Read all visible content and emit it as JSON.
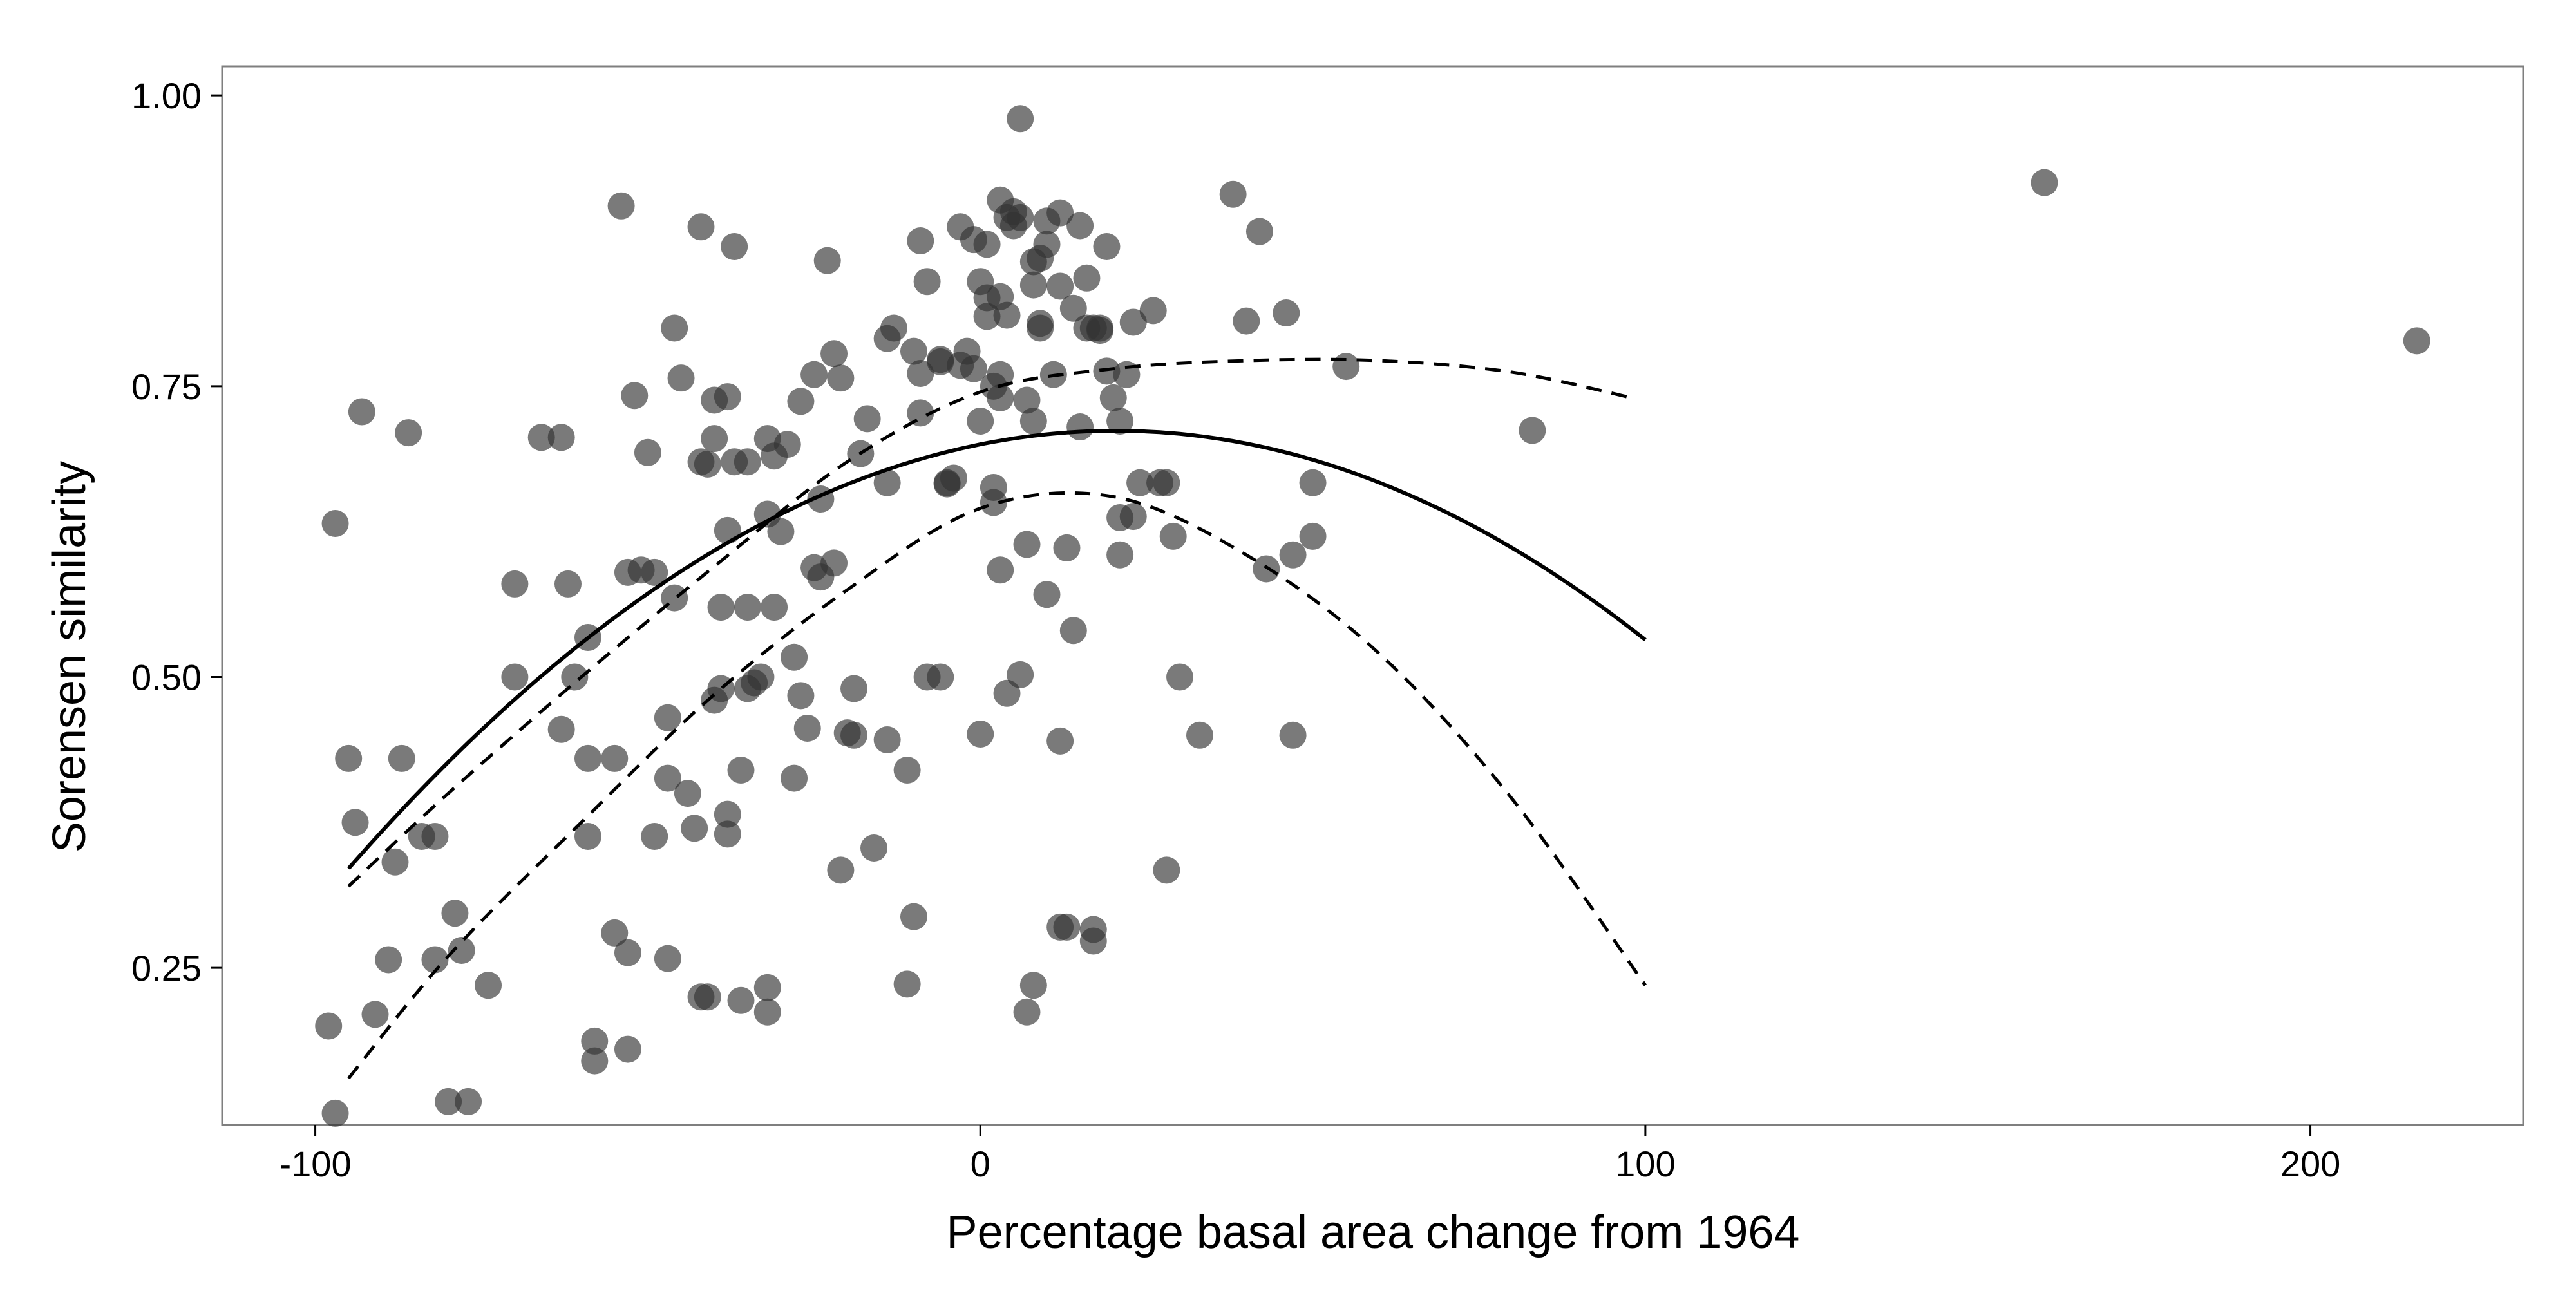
{
  "chart_data": {
    "type": "scatter",
    "xlabel": "Percentage basal area change from 1964",
    "ylabel": "Sorensen similarity",
    "xlim": [
      -114,
      232
    ],
    "ylim": [
      0.115,
      1.025
    ],
    "x_ticks": [
      -100,
      0,
      100,
      200
    ],
    "x_tick_labels": [
      "-100",
      "0",
      "100",
      "200"
    ],
    "y_ticks": [
      0.25,
      0.5,
      0.75,
      1.0
    ],
    "y_tick_labels": [
      "0.25",
      "0.50",
      "0.75",
      "1.00"
    ],
    "grid": false,
    "legend": "none",
    "colors": {
      "point": "#333333",
      "point_opacity": 0.65,
      "fit_line": "#000000",
      "panel_border": "#7f7f7f"
    },
    "points": [
      [
        -98,
        0.2
      ],
      [
        -97,
        0.125
      ],
      [
        -97,
        0.632
      ],
      [
        -95,
        0.43
      ],
      [
        -94,
        0.375
      ],
      [
        -93,
        0.728
      ],
      [
        -91,
        0.21
      ],
      [
        -89,
        0.257
      ],
      [
        -88,
        0.341
      ],
      [
        -87,
        0.43
      ],
      [
        -86,
        0.71
      ],
      [
        -84,
        0.363
      ],
      [
        -82,
        0.257
      ],
      [
        -82,
        0.363
      ],
      [
        -80,
        0.135
      ],
      [
        -79,
        0.297
      ],
      [
        -78,
        0.265
      ],
      [
        -77,
        0.135
      ],
      [
        -74,
        0.235
      ],
      [
        -70,
        0.58
      ],
      [
        -70,
        0.5
      ],
      [
        -66,
        0.706
      ],
      [
        -63,
        0.706
      ],
      [
        -63,
        0.455
      ],
      [
        -62,
        0.58
      ],
      [
        -61,
        0.5
      ],
      [
        -59,
        0.534
      ],
      [
        -59,
        0.363
      ],
      [
        -59,
        0.43
      ],
      [
        -58,
        0.187
      ],
      [
        -58,
        0.17
      ],
      [
        -55,
        0.28
      ],
      [
        -55,
        0.43
      ],
      [
        -54,
        0.905
      ],
      [
        -53,
        0.263
      ],
      [
        -53,
        0.18
      ],
      [
        -53,
        0.59
      ],
      [
        -52,
        0.742
      ],
      [
        -51,
        0.592
      ],
      [
        -50,
        0.693
      ],
      [
        -49,
        0.363
      ],
      [
        -49,
        0.59
      ],
      [
        -47,
        0.413
      ],
      [
        -47,
        0.465
      ],
      [
        -47,
        0.258
      ],
      [
        -46,
        0.8
      ],
      [
        -46,
        0.568
      ],
      [
        -45,
        0.757
      ],
      [
        -44,
        0.4
      ],
      [
        -43,
        0.37
      ],
      [
        -42,
        0.225
      ],
      [
        -42,
        0.887
      ],
      [
        -42,
        0.685
      ],
      [
        -41,
        0.683
      ],
      [
        -41,
        0.225
      ],
      [
        -40,
        0.48
      ],
      [
        -40,
        0.705
      ],
      [
        -40,
        0.738
      ],
      [
        -39,
        0.49
      ],
      [
        -39,
        0.56
      ],
      [
        -38,
        0.741
      ],
      [
        -38,
        0.626
      ],
      [
        -38,
        0.365
      ],
      [
        -38,
        0.382
      ],
      [
        -37,
        0.685
      ],
      [
        -37,
        0.87
      ],
      [
        -36,
        0.222
      ],
      [
        -36,
        0.42
      ],
      [
        -35,
        0.56
      ],
      [
        -35,
        0.685
      ],
      [
        -35,
        0.49
      ],
      [
        -34,
        0.495
      ],
      [
        -33,
        0.5
      ],
      [
        -32,
        0.233
      ],
      [
        -32,
        0.212
      ],
      [
        -32,
        0.64
      ],
      [
        -32,
        0.705
      ],
      [
        -31,
        0.69
      ],
      [
        -31,
        0.56
      ],
      [
        -30,
        0.625
      ],
      [
        -29,
        0.7
      ],
      [
        -28,
        0.413
      ],
      [
        -28,
        0.517
      ],
      [
        -27,
        0.737
      ],
      [
        -27,
        0.484
      ],
      [
        -26,
        0.456
      ],
      [
        -25,
        0.594
      ],
      [
        -25,
        0.76
      ],
      [
        -24,
        0.586
      ],
      [
        -24,
        0.653
      ],
      [
        -23,
        0.858
      ],
      [
        -22,
        0.778
      ],
      [
        -22,
        0.598
      ],
      [
        -21,
        0.757
      ],
      [
        -21,
        0.334
      ],
      [
        -20,
        0.452
      ],
      [
        -19,
        0.45
      ],
      [
        -19,
        0.49
      ],
      [
        -18,
        0.692
      ],
      [
        -17,
        0.722
      ],
      [
        -16,
        0.353
      ],
      [
        -14,
        0.791
      ],
      [
        -14,
        0.667
      ],
      [
        -14,
        0.446
      ],
      [
        -13,
        0.8
      ],
      [
        -11,
        0.42
      ],
      [
        -11,
        0.236
      ],
      [
        -10,
        0.294
      ],
      [
        -10,
        0.78
      ],
      [
        -9,
        0.875
      ],
      [
        -9,
        0.727
      ],
      [
        -9,
        0.761
      ],
      [
        -8,
        0.5
      ],
      [
        -8,
        0.84
      ],
      [
        -6,
        0.771
      ],
      [
        -6,
        0.773
      ],
      [
        -6,
        0.5
      ],
      [
        -5,
        0.667
      ],
      [
        -5,
        0.666
      ],
      [
        -4,
        0.671
      ],
      [
        -3,
        0.887
      ],
      [
        -3,
        0.768
      ],
      [
        -2,
        0.78
      ],
      [
        -1,
        0.765
      ],
      [
        -1,
        0.876
      ],
      [
        0,
        0.84
      ],
      [
        0,
        0.72
      ],
      [
        0,
        0.451
      ],
      [
        1,
        0.872
      ],
      [
        1,
        0.81
      ],
      [
        1,
        0.826
      ],
      [
        2,
        0.75
      ],
      [
        2,
        0.663
      ],
      [
        2,
        0.65
      ],
      [
        3,
        0.74
      ],
      [
        3,
        0.76
      ],
      [
        3,
        0.592
      ],
      [
        3,
        0.827
      ],
      [
        3,
        0.91
      ],
      [
        4,
        0.486
      ],
      [
        4,
        0.811
      ],
      [
        4,
        0.895
      ],
      [
        5,
        0.9
      ],
      [
        5,
        0.888
      ],
      [
        6,
        0.895
      ],
      [
        6,
        0.98
      ],
      [
        6,
        0.502
      ],
      [
        7,
        0.738
      ],
      [
        7,
        0.614
      ],
      [
        7,
        0.212
      ],
      [
        8,
        0.72
      ],
      [
        8,
        0.857
      ],
      [
        8,
        0.837
      ],
      [
        8,
        0.235
      ],
      [
        9,
        0.8
      ],
      [
        9,
        0.804
      ],
      [
        9,
        0.86
      ],
      [
        10,
        0.872
      ],
      [
        10,
        0.571
      ],
      [
        10,
        0.892
      ],
      [
        11,
        0.76
      ],
      [
        12,
        0.899
      ],
      [
        12,
        0.836
      ],
      [
        12,
        0.445
      ],
      [
        12,
        0.285
      ],
      [
        13,
        0.611
      ],
      [
        13,
        0.285
      ],
      [
        14,
        0.54
      ],
      [
        14,
        0.817
      ],
      [
        15,
        0.888
      ],
      [
        15,
        0.715
      ],
      [
        16,
        0.843
      ],
      [
        16,
        0.8
      ],
      [
        17,
        0.8
      ],
      [
        17,
        0.273
      ],
      [
        17,
        0.283
      ],
      [
        18,
        0.798
      ],
      [
        18,
        0.8
      ],
      [
        19,
        0.763
      ],
      [
        19,
        0.87
      ],
      [
        20,
        0.74
      ],
      [
        21,
        0.605
      ],
      [
        21,
        0.72
      ],
      [
        21,
        0.637
      ],
      [
        22,
        0.76
      ],
      [
        23,
        0.638
      ],
      [
        23,
        0.805
      ],
      [
        24,
        0.667
      ],
      [
        26,
        0.815
      ],
      [
        27,
        0.667
      ],
      [
        28,
        0.667
      ],
      [
        28,
        0.334
      ],
      [
        29,
        0.621
      ],
      [
        30,
        0.5
      ],
      [
        33,
        0.45
      ],
      [
        38,
        0.915
      ],
      [
        40,
        0.806
      ],
      [
        42,
        0.883
      ],
      [
        43,
        0.593
      ],
      [
        46,
        0.813
      ],
      [
        47,
        0.605
      ],
      [
        47,
        0.45
      ],
      [
        50,
        0.621
      ],
      [
        50,
        0.667
      ],
      [
        55,
        0.767
      ],
      [
        83,
        0.712
      ],
      [
        160,
        0.925
      ],
      [
        216,
        0.789
      ]
    ],
    "fit": {
      "name": "quadratic fit",
      "style": "solid",
      "x_range": [
        -95,
        100
      ],
      "coefficients": [
        0.7,
        0.00115,
        -2.83e-05
      ]
    },
    "confidence_upper": {
      "name": "upper 95% bound",
      "style": "dashed",
      "x": [
        -95,
        -80,
        -60,
        -40,
        -20,
        0,
        20,
        40,
        60,
        80,
        98
      ],
      "y": [
        0.32,
        0.4,
        0.5,
        0.595,
        0.685,
        0.745,
        0.765,
        0.772,
        0.772,
        0.762,
        0.74
      ]
    },
    "confidence_lower": {
      "name": "lower 95% bound",
      "style": "dashed",
      "x": [
        -95,
        -80,
        -60,
        -40,
        -20,
        0,
        20,
        40,
        60,
        80,
        100
      ],
      "y": [
        0.155,
        0.26,
        0.375,
        0.485,
        0.575,
        0.645,
        0.655,
        0.605,
        0.52,
        0.395,
        0.235
      ]
    }
  }
}
